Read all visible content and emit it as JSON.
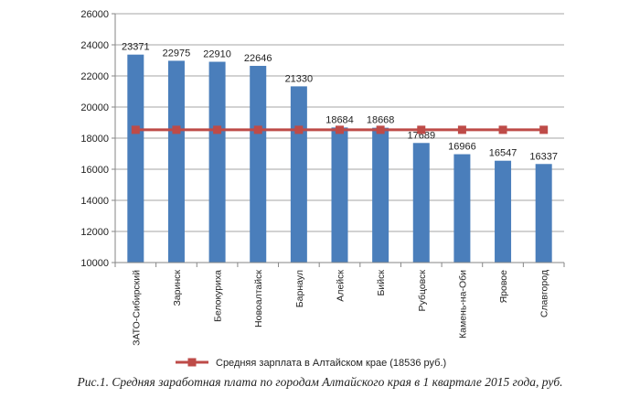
{
  "chart_data": {
    "type": "bar",
    "categories": [
      "ЗАТО-Сибирский",
      "Заринск",
      "Белокуриха",
      "Новоалтайск",
      "Барнаул",
      "Алейск",
      "Бийск",
      "Рубцовск",
      "Камень-на-Оби",
      "Яровое",
      "Славгород"
    ],
    "series": [
      {
        "values": [
          23371,
          22975,
          22910,
          22646,
          21330,
          18684,
          18668,
          17689,
          16966,
          16547,
          16337
        ],
        "color": "#4a7ebb",
        "kind": "bar"
      },
      {
        "name": "Средняя зарплата в Алтайском крае (18536 руб.)",
        "values": [
          18536,
          18536,
          18536,
          18536,
          18536,
          18536,
          18536,
          18536,
          18536,
          18536,
          18536
        ],
        "color": "#be4b48",
        "kind": "line"
      }
    ],
    "ylim": [
      10000,
      26000
    ],
    "yticks": [
      10000,
      12000,
      14000,
      16000,
      18000,
      20000,
      22000,
      24000,
      26000
    ],
    "grid": true,
    "legend_position": "bottom",
    "caption": "Рис.1. Средняя заработная плата по городам Алтайского края в 1 квартале 2015 года, руб."
  }
}
